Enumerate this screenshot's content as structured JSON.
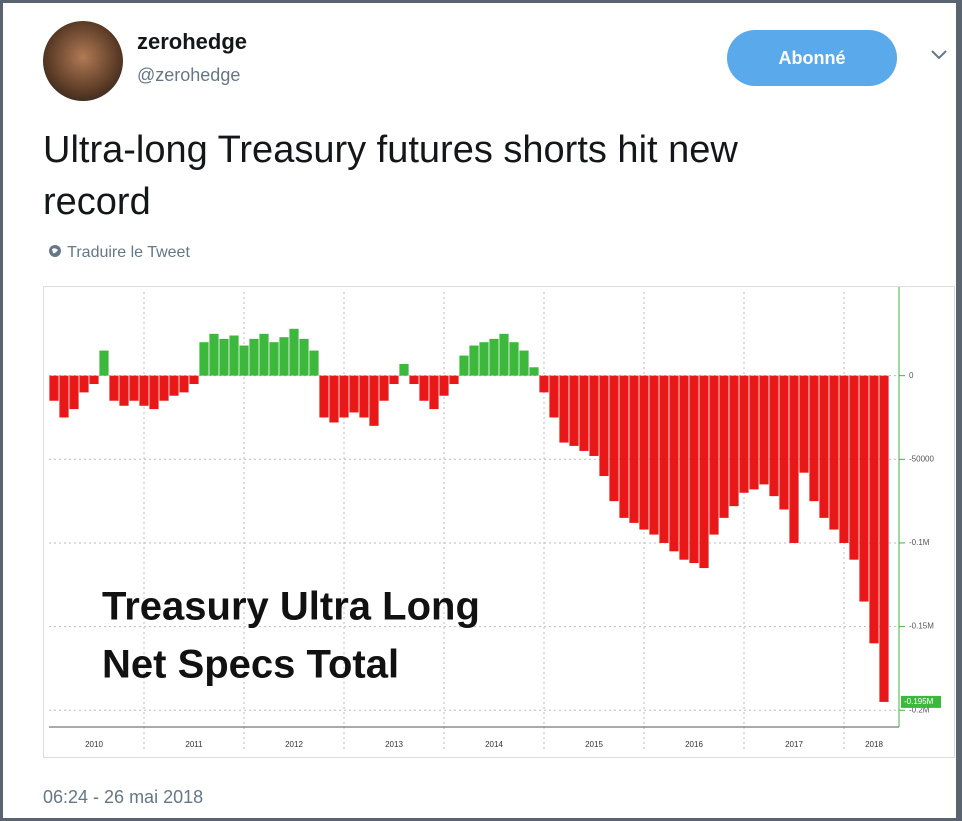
{
  "tweet": {
    "name": "zerohedge",
    "handle": "@zerohedge",
    "follow_button": "Abonné",
    "text_lines": [
      "Ultra-long Treasury futures shorts hit new",
      "record"
    ],
    "translate": "Traduire le Tweet",
    "timestamp": "06:24 - 26 mai 2018"
  },
  "chart_data": {
    "type": "bar",
    "title": [
      "Treasury Ultra Long",
      "Net Specs Total"
    ],
    "x": [
      2010.1,
      2010.2,
      2010.3,
      2010.4,
      2010.5,
      2010.6,
      2010.7,
      2010.8,
      2010.9,
      2011.0,
      2011.1,
      2011.2,
      2011.3,
      2011.4,
      2011.5,
      2011.6,
      2011.7,
      2011.8,
      2011.9,
      2012.0,
      2012.1,
      2012.2,
      2012.3,
      2012.4,
      2012.5,
      2012.6,
      2012.7,
      2012.8,
      2012.9,
      2013.0,
      2013.1,
      2013.2,
      2013.3,
      2013.4,
      2013.5,
      2013.6,
      2013.7,
      2013.8,
      2013.9,
      2014.0,
      2014.1,
      2014.2,
      2014.3,
      2014.4,
      2014.5,
      2014.6,
      2014.7,
      2014.8,
      2014.9,
      2015.0,
      2015.1,
      2015.2,
      2015.3,
      2015.4,
      2015.5,
      2015.6,
      2015.7,
      2015.8,
      2015.9,
      2016.0,
      2016.1,
      2016.2,
      2016.3,
      2016.4,
      2016.5,
      2016.6,
      2016.7,
      2016.8,
      2016.9,
      2017.0,
      2017.1,
      2017.2,
      2017.3,
      2017.4,
      2017.5,
      2017.6,
      2017.7,
      2017.8,
      2017.9,
      2018.0,
      2018.1,
      2018.2,
      2018.3,
      2018.4
    ],
    "values": [
      -15000,
      -25000,
      -20000,
      -10000,
      -5000,
      15000,
      -15000,
      -18000,
      -15000,
      -18000,
      -20000,
      -15000,
      -12000,
      -10000,
      -5000,
      20000,
      25000,
      22000,
      24000,
      18000,
      22000,
      25000,
      20000,
      23000,
      28000,
      22000,
      15000,
      -25000,
      -28000,
      -25000,
      -22000,
      -25000,
      -30000,
      -15000,
      -5000,
      7000,
      -5000,
      -15000,
      -20000,
      -12000,
      -5000,
      12000,
      18000,
      20000,
      22000,
      25000,
      20000,
      15000,
      5000,
      -10000,
      -25000,
      -40000,
      -42000,
      -45000,
      -48000,
      -60000,
      -75000,
      -85000,
      -88000,
      -92000,
      -95000,
      -100000,
      -105000,
      -110000,
      -112000,
      -115000,
      -95000,
      -85000,
      -78000,
      -70000,
      -68000,
      -65000,
      -72000,
      -80000,
      -100000,
      -58000,
      -75000,
      -85000,
      -92000,
      -100000,
      -110000,
      -135000,
      -160000,
      -195000
    ],
    "last_label": "-0.195M",
    "positive_color": "#3cb83c",
    "negative_color": "#e81818",
    "xlim": [
      2010.05,
      2018.55
    ],
    "xticks": [
      {
        "value": 2010.5,
        "label": "2010"
      },
      {
        "value": 2011.5,
        "label": "2011"
      },
      {
        "value": 2012.5,
        "label": "2012"
      },
      {
        "value": 2013.5,
        "label": "2013"
      },
      {
        "value": 2014.5,
        "label": "2014"
      },
      {
        "value": 2015.5,
        "label": "2015"
      },
      {
        "value": 2016.5,
        "label": "2016"
      },
      {
        "value": 2017.5,
        "label": "2017"
      },
      {
        "value": 2018.3,
        "label": "2018"
      }
    ],
    "xgrid": [
      2011,
      2012,
      2013,
      2014,
      2015,
      2016,
      2017,
      2018
    ],
    "ylim": [
      -210000,
      50000
    ],
    "yticks": [
      0,
      -50000,
      {
        "value": -100000,
        "label": "-0.1M"
      },
      {
        "value": -150000,
        "label": "-0.15M"
      },
      {
        "value": -200000,
        "label": "-0.2M"
      }
    ],
    "grid": true
  }
}
